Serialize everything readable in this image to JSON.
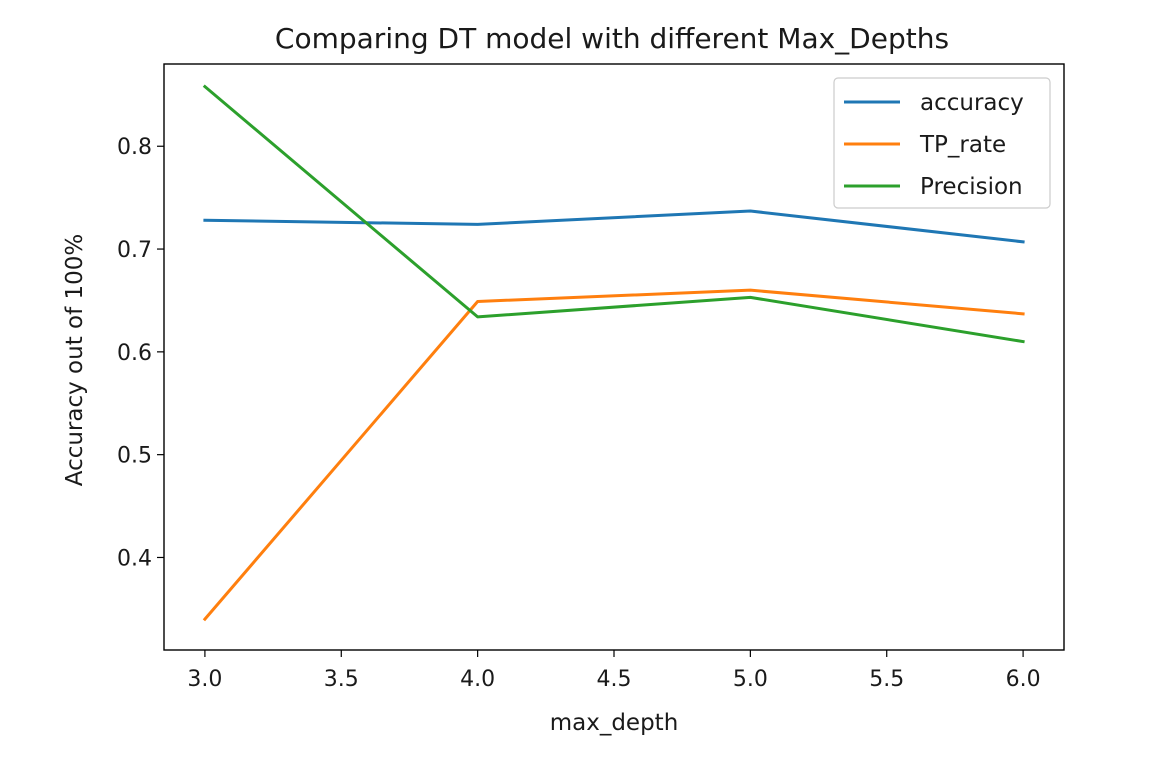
{
  "chart_data": {
    "type": "line",
    "title": "Comparing DT model with different Max_Depths",
    "xlabel": "max_depth",
    "ylabel": "Accuracy out of 100%",
    "x": [
      3.0,
      4.0,
      5.0,
      6.0
    ],
    "xlim": [
      2.85,
      6.15
    ],
    "ylim": [
      0.31,
      0.88
    ],
    "xticks": [
      3.0,
      3.5,
      4.0,
      4.5,
      5.0,
      5.5,
      6.0
    ],
    "xtick_labels": [
      "3.0",
      "3.5",
      "4.0",
      "4.5",
      "5.0",
      "5.5",
      "6.0"
    ],
    "yticks": [
      0.4,
      0.5,
      0.6,
      0.7,
      0.8
    ],
    "ytick_labels": [
      "0.4",
      "0.5",
      "0.6",
      "0.7",
      "0.8"
    ],
    "grid": false,
    "legend_position": "top-right",
    "series": [
      {
        "name": "accuracy",
        "color": "#1f77b4",
        "values": [
          0.728,
          0.724,
          0.737,
          0.707
        ]
      },
      {
        "name": "TP_rate",
        "color": "#ff7f0e",
        "values": [
          0.34,
          0.649,
          0.66,
          0.637
        ]
      },
      {
        "name": "Precision",
        "color": "#2ca02c",
        "values": [
          0.858,
          0.634,
          0.653,
          0.61
        ]
      }
    ]
  }
}
